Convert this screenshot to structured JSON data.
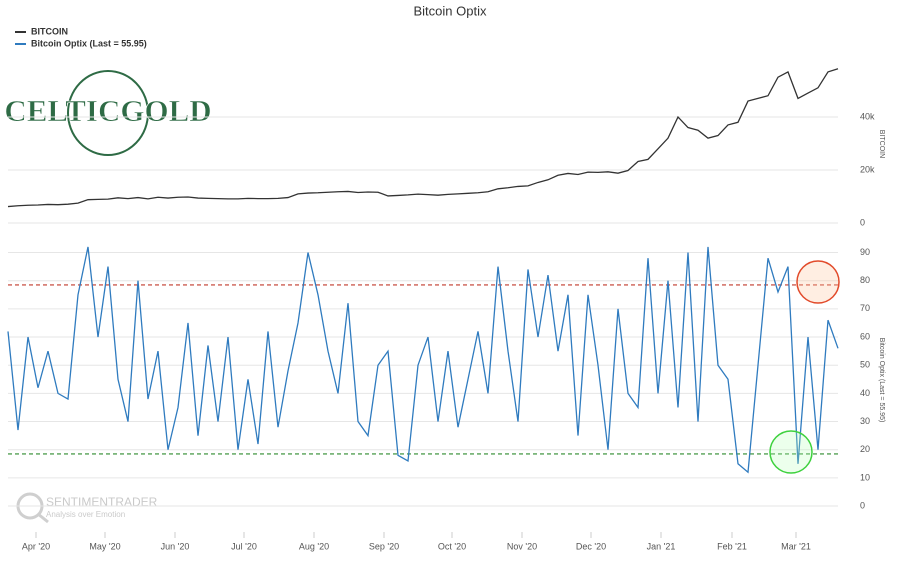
{
  "title": "Bitcoin Optix",
  "logos": {
    "celtic": "CELTICGOLD",
    "sentiment": "SENTIMENTRADER",
    "tagline": "Analysis over Emotion"
  },
  "chart_data": [
    {
      "type": "line",
      "y_axis_label": "BITCOIN",
      "grid": true,
      "xlim": [
        0,
        83
      ],
      "ylim": [
        0,
        59600
      ],
      "yticks": [
        0,
        {
          "value": 20000,
          "label": "20k"
        },
        {
          "value": 40000,
          "label": "40k"
        }
      ],
      "series": [
        {
          "name": "BITCOIN",
          "color": "#333333",
          "values": [
            6200,
            6500,
            6700,
            6800,
            7000,
            6900,
            7100,
            7500,
            8800,
            8900,
            9000,
            9500,
            9200,
            9600,
            9100,
            9700,
            9400,
            9700,
            9800,
            9400,
            9300,
            9200,
            9100,
            9100,
            9300,
            9200,
            9200,
            9300,
            9600,
            11000,
            11300,
            11400,
            11600,
            11800,
            11900,
            11500,
            11700,
            11600,
            10200,
            10400,
            10600,
            10900,
            10700,
            10500,
            10800,
            11000,
            11200,
            11400,
            11800,
            12900,
            13300,
            13800,
            14000,
            15300,
            16300,
            18000,
            18700,
            18300,
            19200,
            19100,
            19300,
            18800,
            19800,
            23200,
            24000,
            28000,
            32000,
            40000,
            36000,
            35000,
            32000,
            33000,
            37000,
            38000,
            46000,
            47000,
            48000,
            55000,
            57000,
            47000,
            49000,
            51000,
            57000,
            58200
          ]
        }
      ]
    },
    {
      "type": "line",
      "y_axis_label": "Bitcoin Optix (Last = 55.95)",
      "grid": true,
      "xlim": [
        0,
        83
      ],
      "ylim": [
        -8.5,
        98
      ],
      "yticks": [
        0,
        10,
        20,
        30,
        40,
        50,
        60,
        70,
        80,
        90
      ],
      "xticks": [
        {
          "value": 2.8,
          "label": "Apr '20"
        },
        {
          "value": 9.7,
          "label": "May '20"
        },
        {
          "value": 16.7,
          "label": "Jun '20"
        },
        {
          "value": 23.6,
          "label": "Jul '20"
        },
        {
          "value": 30.6,
          "label": "Aug '20"
        },
        {
          "value": 37.6,
          "label": "Sep '20"
        },
        {
          "value": 44.4,
          "label": "Oct '20"
        },
        {
          "value": 51.4,
          "label": "Nov '20"
        },
        {
          "value": 58.3,
          "label": "Dec '20"
        },
        {
          "value": 65.3,
          "label": "Jan '21"
        },
        {
          "value": 72.4,
          "label": "Feb '21"
        },
        {
          "value": 78.8,
          "label": "Mar '21"
        }
      ],
      "reference_lines": [
        {
          "value": 78.5,
          "color": "#c0392b"
        },
        {
          "value": 18.5,
          "color": "#2e8b2e"
        }
      ],
      "series": [
        {
          "name": "Bitcoin Optix (Last = 55.95)",
          "color": "#2f7bbf",
          "values": [
            62,
            27,
            60,
            42,
            55,
            40,
            38,
            75,
            92,
            60,
            85,
            45,
            30,
            80,
            38,
            55,
            20,
            35,
            65,
            25,
            57,
            30,
            60,
            20,
            45,
            22,
            62,
            28,
            48,
            65,
            90,
            75,
            55,
            40,
            72,
            30,
            25,
            50,
            55,
            18,
            16,
            50,
            60,
            30,
            55,
            28,
            45,
            62,
            40,
            85,
            55,
            30,
            84,
            60,
            82,
            55,
            75,
            25,
            75,
            50,
            20,
            70,
            40,
            35,
            88,
            40,
            80,
            35,
            90,
            30,
            92,
            50,
            45,
            15,
            12,
            50,
            88,
            76,
            85,
            15,
            60,
            20,
            66,
            56
          ]
        }
      ]
    }
  ]
}
